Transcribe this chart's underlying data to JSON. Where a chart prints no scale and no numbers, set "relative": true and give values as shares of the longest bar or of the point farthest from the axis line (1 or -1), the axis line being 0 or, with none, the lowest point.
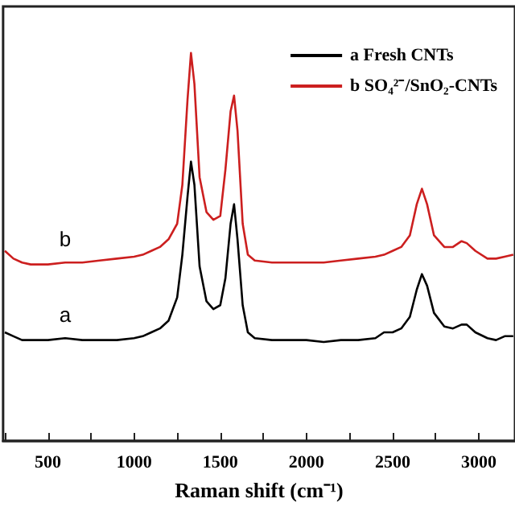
{
  "chart_data": {
    "type": "line",
    "relative": true,
    "xlabel": "Raman shift (cm⁻¹)",
    "xlim": [
      240,
      3210
    ],
    "xticks": [
      {
        "value": 250,
        "label": null
      },
      500,
      {
        "value": 750,
        "label": null
      },
      1000,
      {
        "value": 1250,
        "label": null
      },
      1500,
      {
        "value": 1750,
        "label": null
      },
      2000,
      {
        "value": 2250,
        "label": null
      },
      2500,
      {
        "value": 2750,
        "label": null
      },
      3000
    ],
    "legend": "top right",
    "marker": "none",
    "line_style": "solid",
    "grid": false,
    "annotations": [
      "a",
      "b"
    ],
    "series": [
      {
        "name": "a Fresh CNTs",
        "color": "#000000",
        "x": [
          250,
          300,
          350,
          400,
          500,
          600,
          700,
          800,
          900,
          1000,
          1050,
          1100,
          1150,
          1200,
          1250,
          1280,
          1310,
          1330,
          1350,
          1380,
          1420,
          1460,
          1500,
          1530,
          1560,
          1580,
          1600,
          1630,
          1660,
          1700,
          1800,
          1900,
          2000,
          2100,
          2200,
          2300,
          2400,
          2450,
          2500,
          2550,
          2600,
          2640,
          2670,
          2700,
          2740,
          2800,
          2850,
          2900,
          2930,
          2980,
          3050,
          3100,
          3150,
          3200
        ],
        "values": [
          0.28,
          0.27,
          0.26,
          0.26,
          0.26,
          0.265,
          0.26,
          0.26,
          0.26,
          0.265,
          0.27,
          0.28,
          0.29,
          0.31,
          0.37,
          0.48,
          0.63,
          0.72,
          0.66,
          0.45,
          0.36,
          0.34,
          0.35,
          0.42,
          0.56,
          0.61,
          0.52,
          0.35,
          0.28,
          0.265,
          0.26,
          0.26,
          0.26,
          0.255,
          0.26,
          0.26,
          0.265,
          0.28,
          0.28,
          0.29,
          0.32,
          0.39,
          0.43,
          0.4,
          0.33,
          0.295,
          0.29,
          0.3,
          0.3,
          0.28,
          0.265,
          0.26,
          0.27,
          0.27
        ]
      },
      {
        "name": "b SO₄²⁻/SnO₂-CNTs",
        "color": "#cc1f1f",
        "x": [
          250,
          300,
          350,
          400,
          500,
          600,
          700,
          800,
          900,
          1000,
          1050,
          1100,
          1150,
          1200,
          1250,
          1280,
          1310,
          1330,
          1350,
          1380,
          1420,
          1460,
          1500,
          1530,
          1560,
          1580,
          1600,
          1630,
          1660,
          1700,
          1800,
          1900,
          2000,
          2100,
          2200,
          2300,
          2400,
          2450,
          2500,
          2550,
          2600,
          2640,
          2670,
          2700,
          2740,
          2800,
          2850,
          2900,
          2930,
          2980,
          3050,
          3100,
          3150,
          3200
        ],
        "values": [
          0.49,
          0.47,
          0.46,
          0.455,
          0.455,
          0.46,
          0.46,
          0.465,
          0.47,
          0.475,
          0.48,
          0.49,
          0.5,
          0.52,
          0.56,
          0.66,
          0.88,
          1,
          0.92,
          0.68,
          0.59,
          0.57,
          0.58,
          0.7,
          0.85,
          0.89,
          0.8,
          0.56,
          0.48,
          0.465,
          0.46,
          0.46,
          0.46,
          0.46,
          0.465,
          0.47,
          0.475,
          0.48,
          0.49,
          0.5,
          0.53,
          0.61,
          0.65,
          0.61,
          0.53,
          0.5,
          0.5,
          0.515,
          0.51,
          0.49,
          0.47,
          0.47,
          0.475,
          0.48
        ]
      }
    ]
  }
}
